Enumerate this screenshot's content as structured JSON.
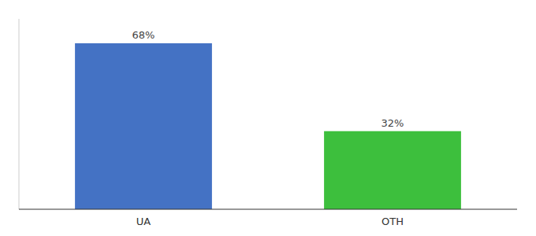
{
  "chart_data": {
    "type": "bar",
    "categories": [
      "UA",
      "OTH"
    ],
    "values": [
      68,
      32
    ],
    "value_labels": [
      "68%",
      "32%"
    ],
    "colors": [
      "#4472c4",
      "#3dbf3d"
    ],
    "ylim": [
      0,
      78
    ],
    "data_labels": true,
    "tick_labels": "x",
    "grid": false
  }
}
